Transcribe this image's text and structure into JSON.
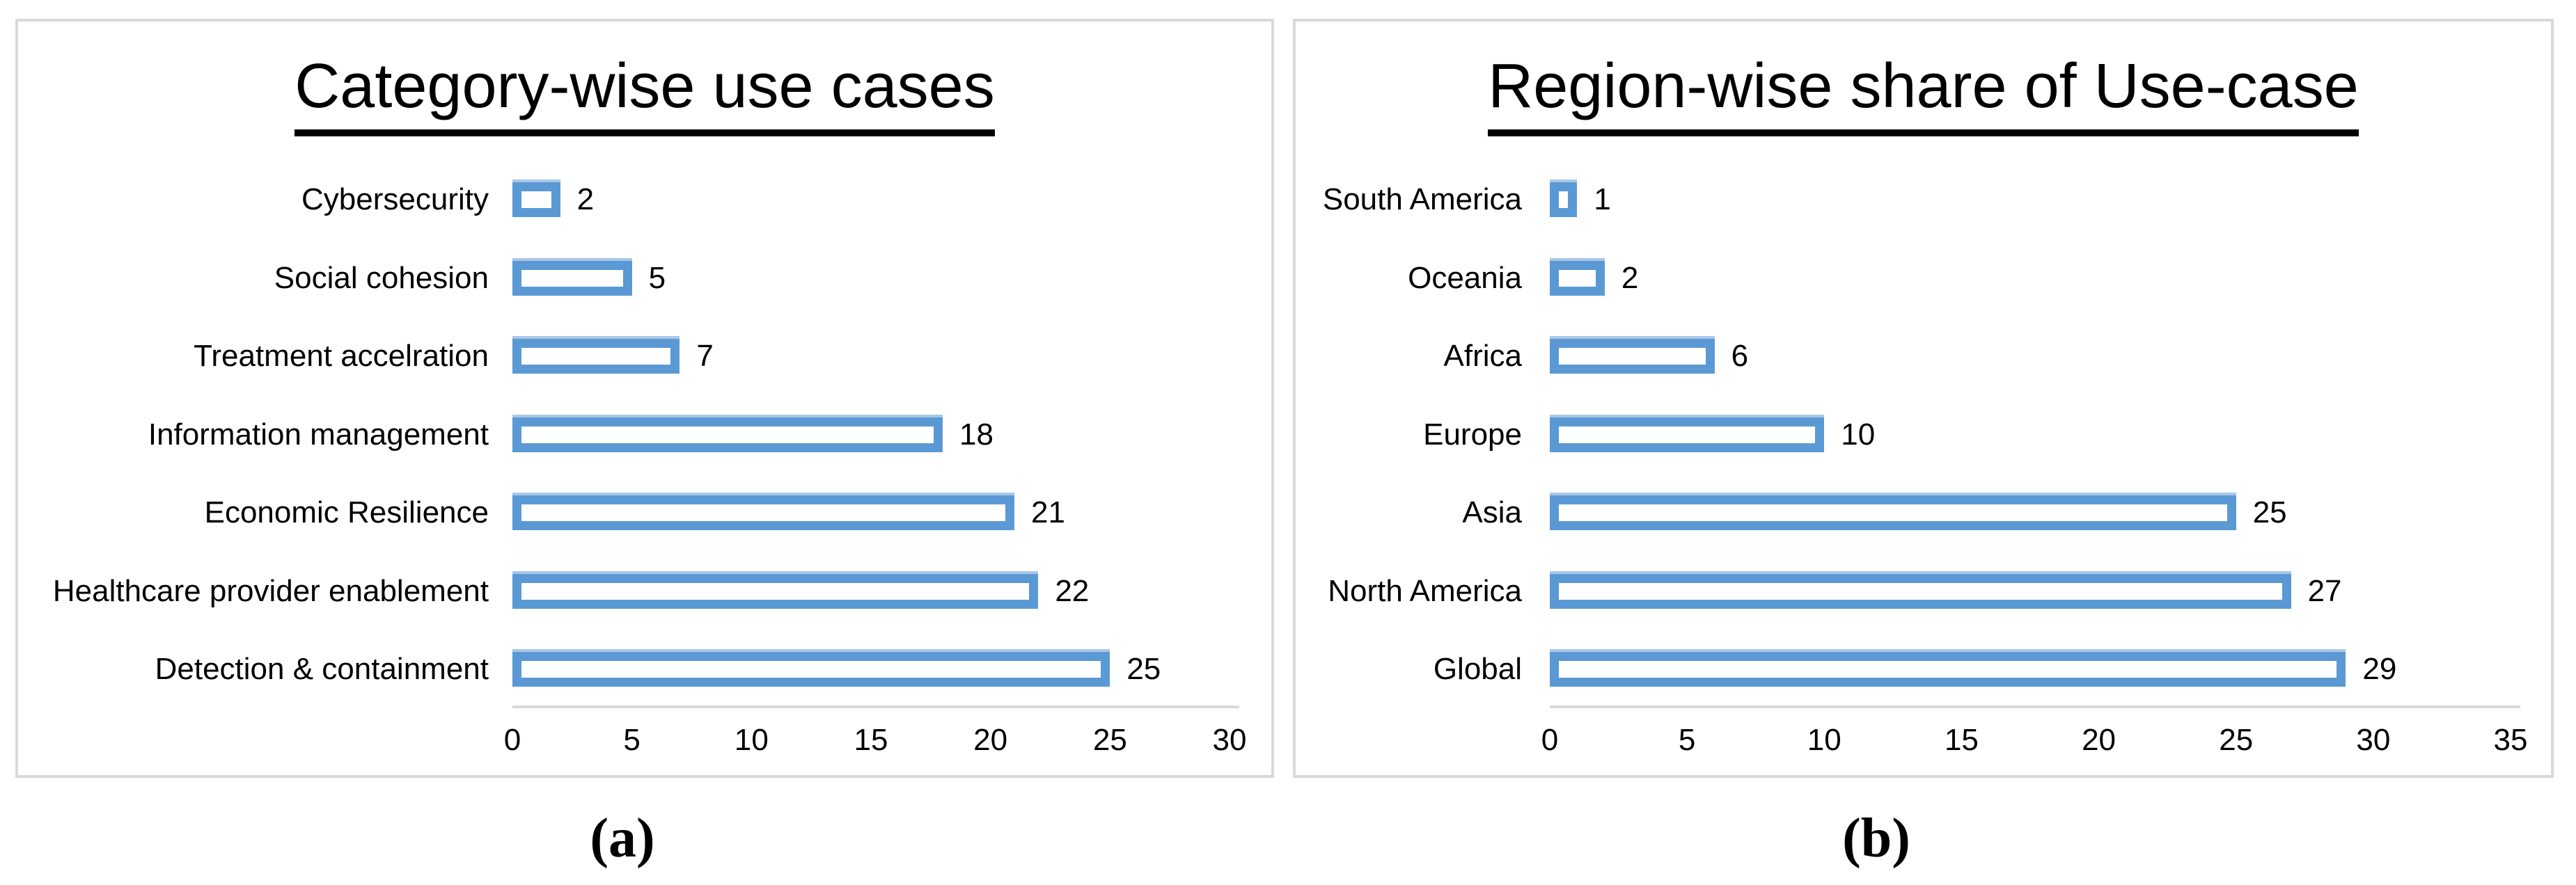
{
  "colors": {
    "bar_fill": "#ffffff",
    "bar_border": "#5b99d5",
    "bar_border_highlight": "#a9c7e7",
    "axis_line": "#d9d9d9",
    "panel_border": "#d9d9d9",
    "text": "#000000"
  },
  "chart_data": [
    {
      "type": "bar",
      "orientation": "horizontal",
      "title": "Category-wise use cases",
      "caption": "(a)",
      "categories": [
        "Cybersecurity",
        "Social cohesion",
        "Treatment accelration",
        "Information management",
        "Economic Resilience",
        "Healthcare provider enablement",
        "Detection & containment"
      ],
      "values": [
        2,
        5,
        7,
        18,
        21,
        22,
        25
      ],
      "data_labels": true,
      "xlim": [
        0,
        30
      ],
      "x_ticks": [
        0,
        5,
        10,
        15,
        20,
        25,
        30
      ],
      "xlabel": "",
      "ylabel": "",
      "grid": "off",
      "legend": "none"
    },
    {
      "type": "bar",
      "orientation": "horizontal",
      "title": "Region-wise share of Use-case",
      "caption": "(b)",
      "categories": [
        "South America",
        "Oceania",
        "Africa",
        "Europe",
        "Asia",
        "North America",
        "Global"
      ],
      "values": [
        1,
        2,
        6,
        10,
        25,
        27,
        29
      ],
      "data_labels": true,
      "xlim": [
        0,
        35
      ],
      "x_ticks": [
        0,
        5,
        10,
        15,
        20,
        25,
        30,
        35
      ],
      "xlabel": "",
      "ylabel": "",
      "grid": "off",
      "legend": "none"
    }
  ]
}
